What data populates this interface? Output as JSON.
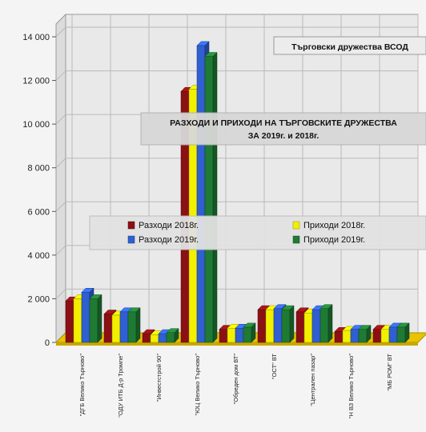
{
  "chart_data": {
    "type": "bar",
    "title_box": "Търговски дружества ВСОД",
    "title_line1": "РАЗХОДИ И ПРИХОДИ НА ТЪРГОВСКИТЕ ДРУЖЕСТВА",
    "title_line2": "ЗА 2019г. и 2018г.",
    "y_ticks": [
      "0",
      "2 000",
      "4 000",
      "6 000",
      "8 000",
      "10 000",
      "12 000",
      "14 000"
    ],
    "ylim": [
      0,
      14000
    ],
    "categories": [
      "\"ДГБ Велико Търново\"",
      "\"ОДУ ИТБ Д-р Тромпе\"",
      "\"Инвестстрой 90\"",
      "\"ЮЦ Велико Търново\"",
      "\"Обреден дом ВТ\"",
      "\"ОСТ\" ВТ",
      "\"Централен пазар\"",
      "\"Н ВЗ Велико Търново\"",
      "\"МБ РОМ\" ВТ"
    ],
    "series": [
      {
        "name": "Разходи 2018г.",
        "color": "#8b1014",
        "values": [
          1900,
          1300,
          400,
          11500,
          600,
          1500,
          1400,
          500,
          600
        ]
      },
      {
        "name": "Приходи 2018г.",
        "color": "#f2f000",
        "values": [
          2000,
          1250,
          350,
          11600,
          650,
          1500,
          1350,
          550,
          600
        ]
      },
      {
        "name": "Разходи 2019г.",
        "color": "#2f5fd0",
        "values": [
          2300,
          1400,
          400,
          13600,
          650,
          1550,
          1500,
          600,
          700
        ]
      },
      {
        "name": "Приходи 2019г.",
        "color": "#1f7a34",
        "values": [
          2000,
          1400,
          450,
          13100,
          700,
          1500,
          1550,
          600,
          700
        ]
      }
    ]
  }
}
